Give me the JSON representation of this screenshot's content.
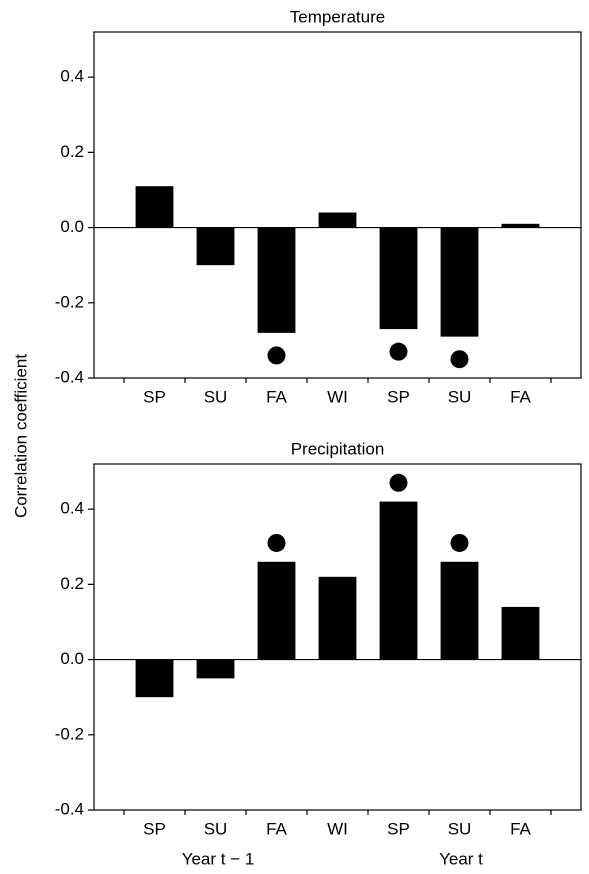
{
  "ylabel": "Correlation coefficient",
  "xgroups": [
    "Year t − 1",
    "Year t"
  ],
  "chart_data": [
    {
      "type": "bar",
      "title": "Temperature",
      "categories": [
        "SP",
        "SU",
        "FA",
        "WI",
        "SP",
        "SU",
        "FA"
      ],
      "values": [
        0.11,
        -0.1,
        -0.28,
        0.04,
        -0.27,
        -0.29,
        0.01
      ],
      "markers": [
        null,
        null,
        -0.34,
        null,
        -0.33,
        -0.35,
        null
      ],
      "color": "#000000",
      "ylim": [
        -0.4,
        0.52
      ],
      "yticks": [
        -0.4,
        -0.2,
        {
          "value": 0,
          "label": "0.0"
        },
        0.2,
        0.4
      ]
    },
    {
      "type": "bar",
      "title": "Precipitation",
      "categories": [
        "SP",
        "SU",
        "FA",
        "WI",
        "SP",
        "SU",
        "FA"
      ],
      "values": [
        -0.1,
        -0.05,
        0.26,
        0.22,
        0.42,
        0.26,
        0.14
      ],
      "markers": [
        null,
        null,
        0.31,
        null,
        0.47,
        0.31,
        null
      ],
      "color": "#000000",
      "ylim": [
        -0.4,
        0.52
      ],
      "yticks": [
        -0.4,
        -0.2,
        {
          "value": 0,
          "label": "0.0"
        },
        0.2,
        0.4
      ]
    }
  ]
}
